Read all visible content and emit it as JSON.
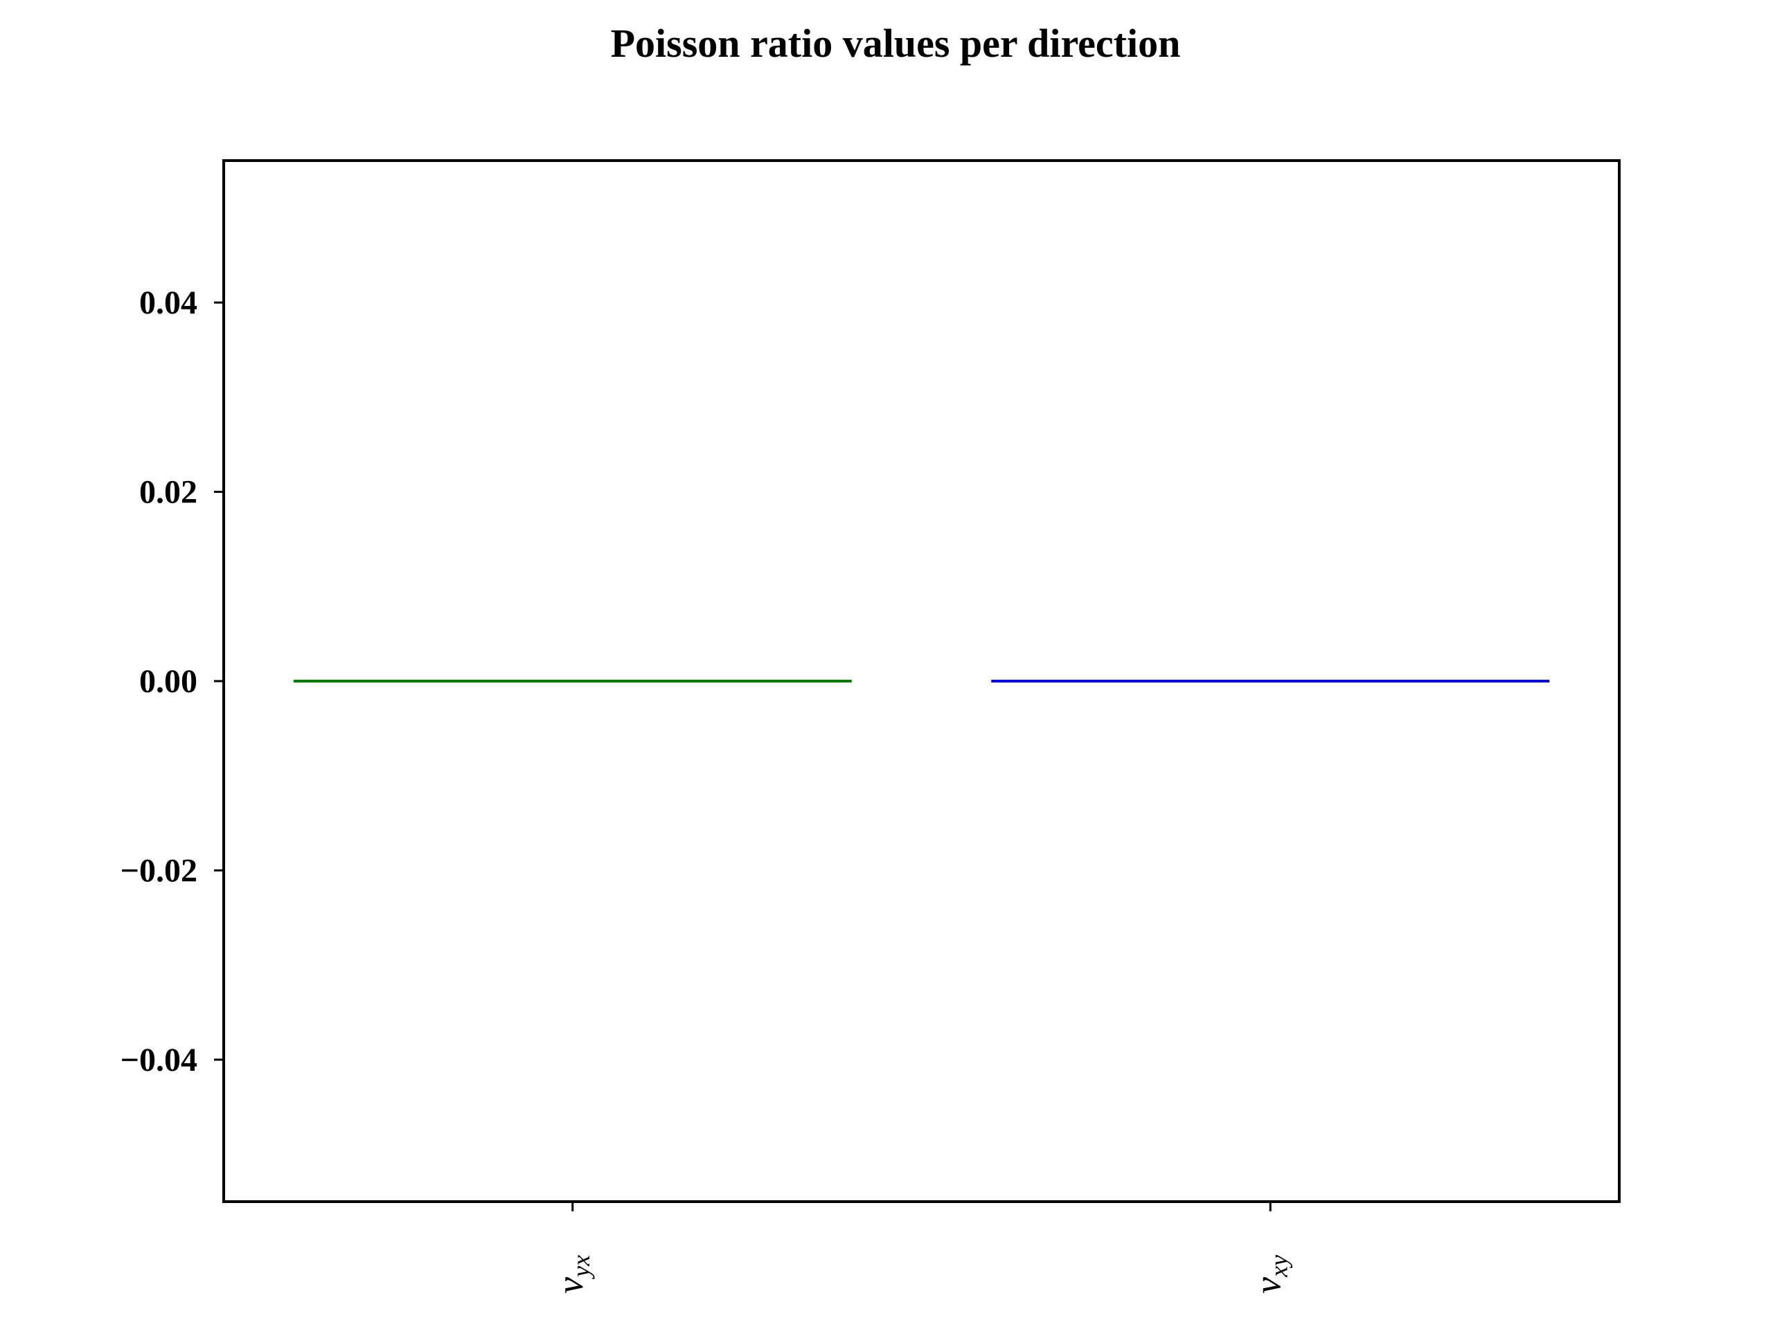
{
  "chart_data": {
    "type": "bar",
    "title": "Poisson ratio values per direction",
    "xlabel": "",
    "ylabel": "",
    "categories": [
      {
        "symbol": "ν",
        "subscript": "yx"
      },
      {
        "symbol": "ν",
        "subscript": "xy"
      }
    ],
    "values": [
      0.0,
      0.0
    ],
    "colors": [
      "#008000",
      "#0000ff"
    ],
    "ylim": [
      -0.055,
      0.055
    ],
    "yticks": [
      0.04,
      0.02,
      0.0,
      -0.02,
      -0.04
    ],
    "ytick_labels": [
      "0.04",
      "0.02",
      "0.00",
      "−0.02",
      "−0.04"
    ],
    "grid": false,
    "legend": false
  }
}
